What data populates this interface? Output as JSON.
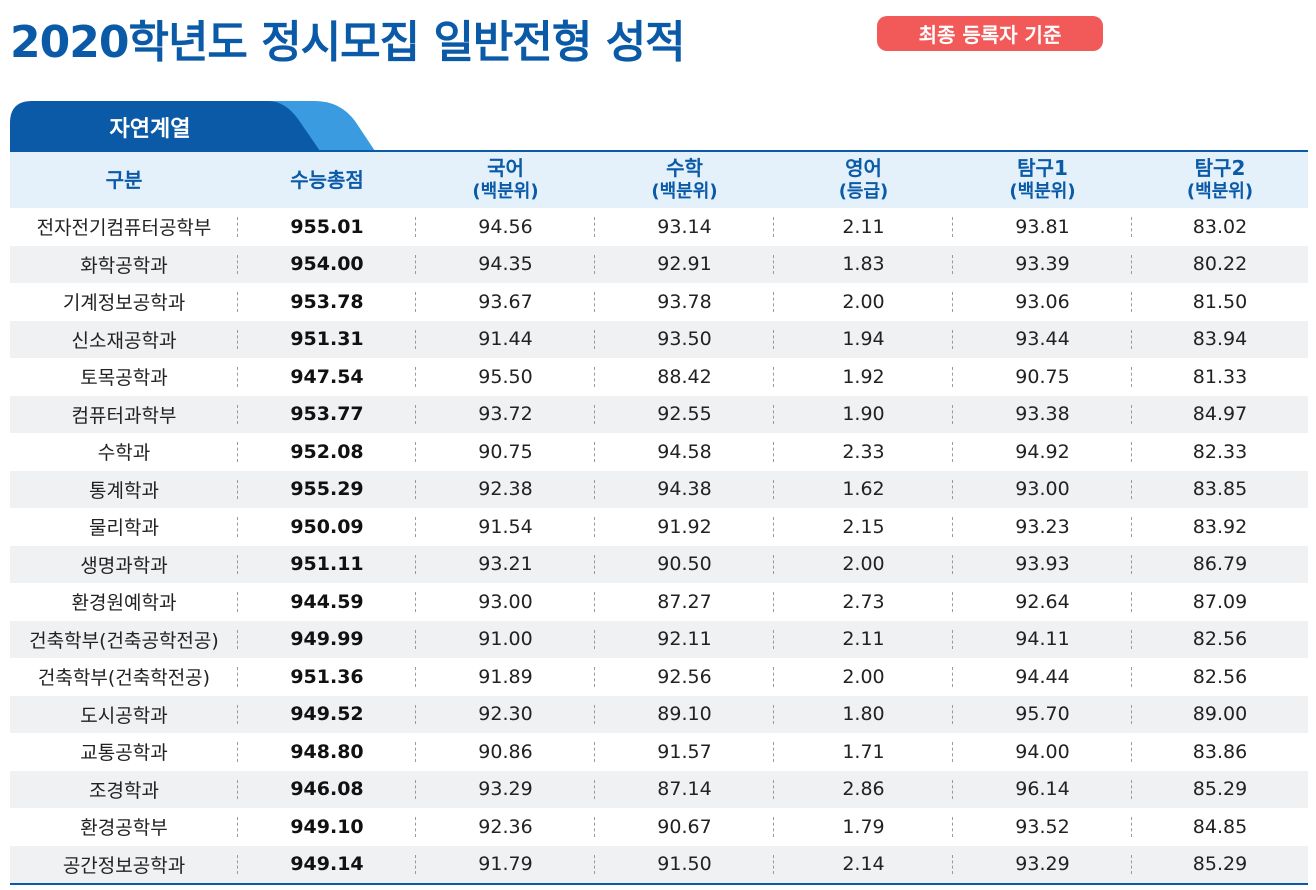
{
  "header": {
    "title": "2020학년도 정시모집 일반전형 성적",
    "badge": "최종 등록자 기준"
  },
  "tab": {
    "label": "자연계열"
  },
  "colors": {
    "primary": "#0a5aa8",
    "tab_light": "#3b9be0",
    "badge": "#f25a5a",
    "header_bg": "#e4f1fb",
    "alt_row": "#f0f1f3"
  },
  "table": {
    "columns": [
      {
        "label": "구분",
        "sub": ""
      },
      {
        "label": "수능총점",
        "sub": ""
      },
      {
        "label": "국어",
        "sub": "(백분위)"
      },
      {
        "label": "수학",
        "sub": "(백분위)"
      },
      {
        "label": "영어",
        "sub": "(등급)"
      },
      {
        "label": "탐구1",
        "sub": "(백분위)"
      },
      {
        "label": "탐구2",
        "sub": "(백분위)"
      }
    ],
    "rows": [
      [
        "전자전기컴퓨터공학부",
        "955.01",
        "94.56",
        "93.14",
        "2.11",
        "93.81",
        "83.02"
      ],
      [
        "화학공학과",
        "954.00",
        "94.35",
        "92.91",
        "1.83",
        "93.39",
        "80.22"
      ],
      [
        "기계정보공학과",
        "953.78",
        "93.67",
        "93.78",
        "2.00",
        "93.06",
        "81.50"
      ],
      [
        "신소재공학과",
        "951.31",
        "91.44",
        "93.50",
        "1.94",
        "93.44",
        "83.94"
      ],
      [
        "토목공학과",
        "947.54",
        "95.50",
        "88.42",
        "1.92",
        "90.75",
        "81.33"
      ],
      [
        "컴퓨터과학부",
        "953.77",
        "93.72",
        "92.55",
        "1.90",
        "93.38",
        "84.97"
      ],
      [
        "수학과",
        "952.08",
        "90.75",
        "94.58",
        "2.33",
        "94.92",
        "82.33"
      ],
      [
        "통계학과",
        "955.29",
        "92.38",
        "94.38",
        "1.62",
        "93.00",
        "83.85"
      ],
      [
        "물리학과",
        "950.09",
        "91.54",
        "91.92",
        "2.15",
        "93.23",
        "83.92"
      ],
      [
        "생명과학과",
        "951.11",
        "93.21",
        "90.50",
        "2.00",
        "93.93",
        "86.79"
      ],
      [
        "환경원예학과",
        "944.59",
        "93.00",
        "87.27",
        "2.73",
        "92.64",
        "87.09"
      ],
      [
        "건축학부(건축공학전공)",
        "949.99",
        "91.00",
        "92.11",
        "2.11",
        "94.11",
        "82.56"
      ],
      [
        "건축학부(건축학전공)",
        "951.36",
        "91.89",
        "92.56",
        "2.00",
        "94.44",
        "82.56"
      ],
      [
        "도시공학과",
        "949.52",
        "92.30",
        "89.10",
        "1.80",
        "95.70",
        "89.00"
      ],
      [
        "교통공학과",
        "948.80",
        "90.86",
        "91.57",
        "1.71",
        "94.00",
        "83.86"
      ],
      [
        "조경학과",
        "946.08",
        "93.29",
        "87.14",
        "2.86",
        "96.14",
        "85.29"
      ],
      [
        "환경공학부",
        "949.10",
        "92.36",
        "90.67",
        "1.79",
        "93.52",
        "84.85"
      ],
      [
        "공간정보공학과",
        "949.14",
        "91.79",
        "91.50",
        "2.14",
        "93.29",
        "85.29"
      ]
    ]
  }
}
